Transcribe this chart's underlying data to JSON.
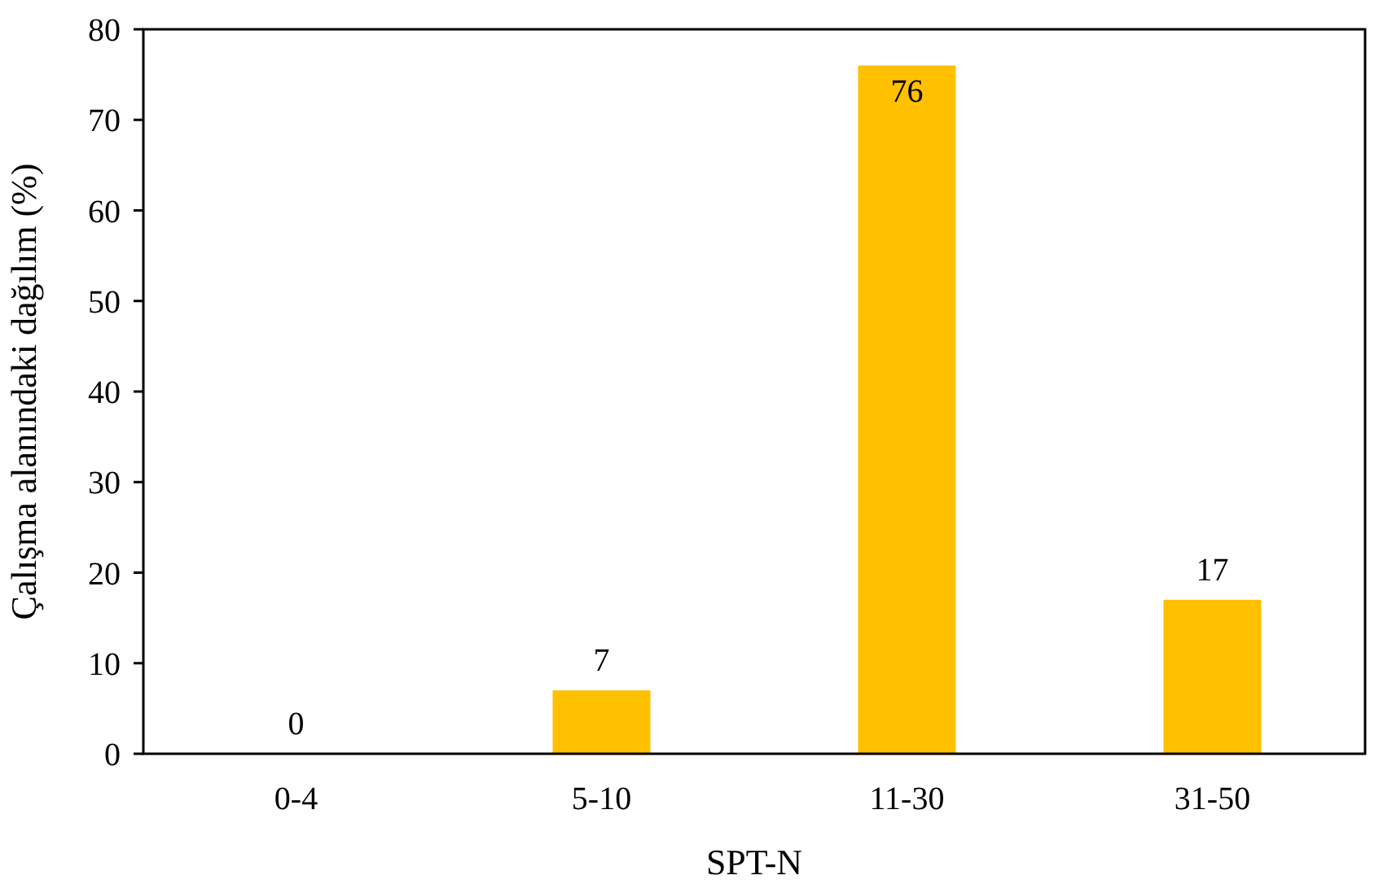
{
  "chart_data": {
    "type": "bar",
    "xlabel": "SPT-N",
    "ylabel": "Çalışma alanındaki dağılım (%)",
    "categories": [
      "0-4",
      "5-10",
      "11-30",
      "31-50"
    ],
    "values": [
      0,
      7,
      76,
      17
    ],
    "color": "#ffc000",
    "ylim": [
      0,
      80
    ],
    "yticks": [
      0,
      10,
      20,
      30,
      40,
      50,
      60,
      70,
      80
    ],
    "grid": false,
    "data_labels": true
  }
}
